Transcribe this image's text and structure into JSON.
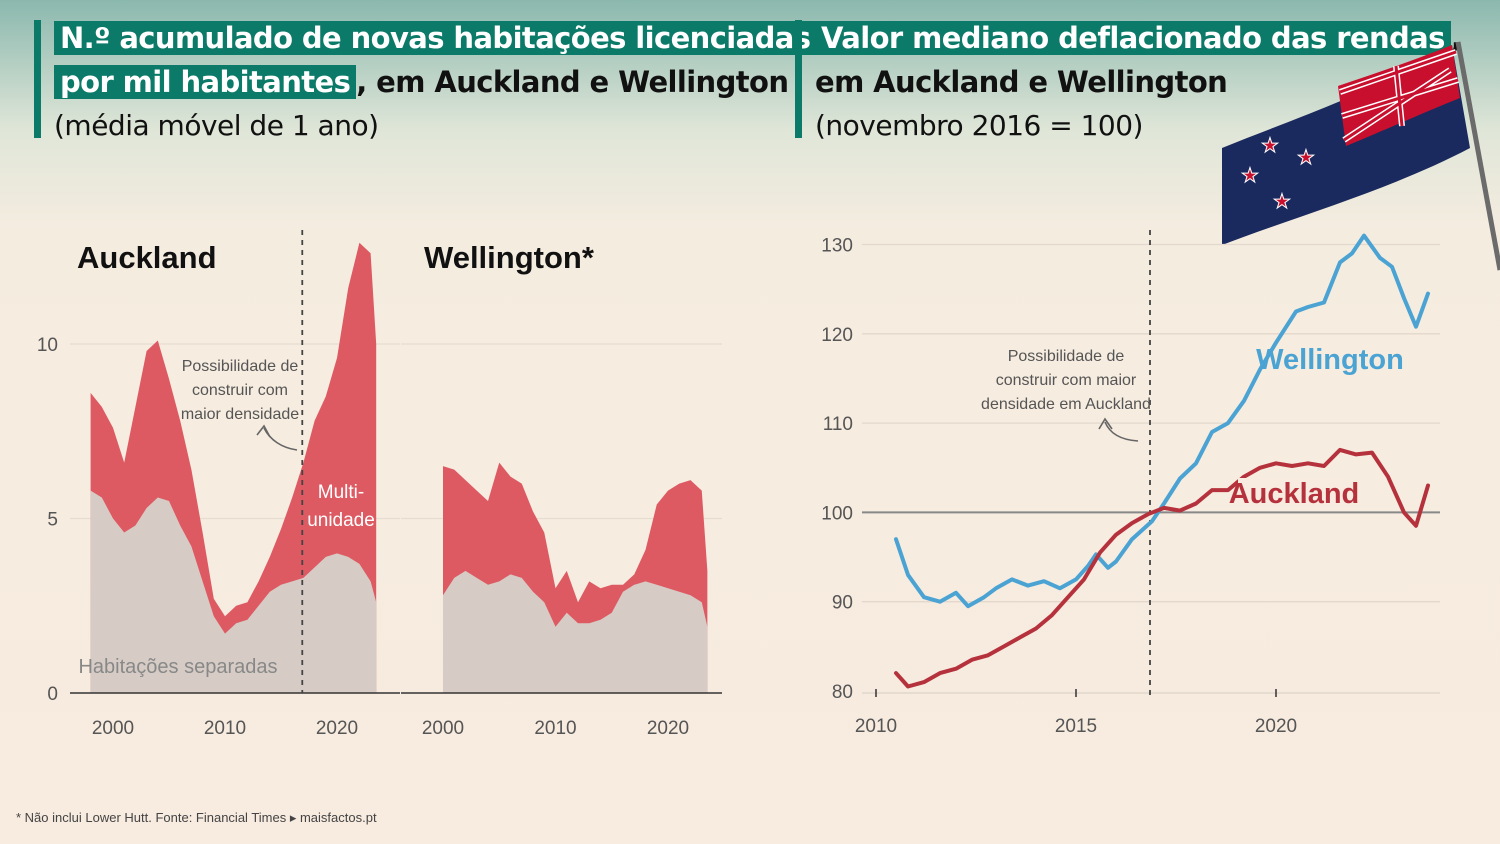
{
  "left": {
    "title_hl_1": "N.º acumulado de novas habitações licenciadas",
    "title_hl_2": "por mil habitantes",
    "title_rest_2": ", em Auckland e Wellington",
    "subtitle": "(média móvel de 1 ano)"
  },
  "right": {
    "title_hl_1": "Valor mediano deflacionado das rendas",
    "title_rest_1": ",",
    "title_2": "em Auckland e Wellington",
    "subtitle": "(novembro 2016 = 100)"
  },
  "footnote": "* Não inclui Lower Hutt.  Fonte: Financial Times ▸ maisfactos.pt",
  "colors": {
    "accent": "#0c7a68",
    "multi": "#de5a63",
    "detached": "#d6ccc5",
    "wellington": "#4ba3d3",
    "auckland": "#b5323d"
  },
  "chart_data": [
    {
      "type": "area",
      "panels": [
        "Auckland",
        "Wellington*"
      ],
      "annotation": "Possibilidade de construir com maior densidade",
      "label_multi": "Multi-\nunidade",
      "label_detached": "Habitações separadas",
      "ylim": [
        0,
        13.5
      ],
      "yticks": [
        0,
        5,
        10
      ],
      "xticks": [
        2000,
        2010,
        2020
      ],
      "auckland": {
        "x": [
          1998,
          1999,
          2000,
          2001,
          2002,
          2003,
          2004,
          2005,
          2006,
          2007,
          2008,
          2009,
          2010,
          2011,
          2012,
          2013,
          2014,
          2015,
          2016,
          2017,
          2018,
          2019,
          2020,
          2021,
          2022,
          2023,
          2023.5
        ],
        "detached": [
          5.8,
          5.6,
          5.0,
          4.6,
          4.8,
          5.3,
          5.6,
          5.5,
          4.8,
          4.2,
          3.2,
          2.2,
          1.7,
          2.0,
          2.1,
          2.5,
          2.9,
          3.1,
          3.2,
          3.3,
          3.6,
          3.9,
          4.0,
          3.9,
          3.7,
          3.2,
          2.6
        ],
        "total": [
          8.6,
          8.2,
          7.6,
          6.6,
          8.2,
          9.8,
          10.1,
          9.0,
          7.8,
          6.4,
          4.6,
          2.7,
          2.2,
          2.5,
          2.6,
          3.2,
          3.9,
          4.7,
          5.6,
          6.6,
          7.8,
          8.5,
          9.6,
          11.6,
          12.9,
          12.6,
          10.0
        ]
      },
      "wellington": {
        "x": [
          2000,
          2001,
          2002,
          2003,
          2004,
          2005,
          2006,
          2007,
          2008,
          2009,
          2010,
          2011,
          2012,
          2013,
          2014,
          2015,
          2016,
          2017,
          2018,
          2019,
          2020,
          2021,
          2022,
          2023,
          2023.5
        ],
        "detached": [
          2.8,
          3.3,
          3.5,
          3.3,
          3.1,
          3.2,
          3.4,
          3.3,
          2.9,
          2.6,
          1.9,
          2.3,
          2.0,
          2.0,
          2.1,
          2.3,
          2.9,
          3.1,
          3.2,
          3.1,
          3.0,
          2.9,
          2.8,
          2.6,
          1.9
        ],
        "total": [
          6.5,
          6.4,
          6.1,
          5.8,
          5.5,
          6.6,
          6.2,
          6.0,
          5.2,
          4.6,
          3.0,
          3.5,
          2.6,
          3.2,
          3.0,
          3.1,
          3.1,
          3.4,
          4.1,
          5.4,
          5.8,
          6.0,
          6.1,
          5.8,
          3.5
        ]
      }
    },
    {
      "type": "line",
      "annotation": "Possibilidade de construir com maior densidade em Auckland",
      "ylim": [
        80,
        131
      ],
      "yticks": [
        80,
        90,
        100,
        110,
        120,
        130
      ],
      "xticks": [
        2010,
        2015,
        2020
      ],
      "series": [
        {
          "name": "Wellington",
          "x": [
            2010.5,
            2010.8,
            2011.2,
            2011.6,
            2012.0,
            2012.3,
            2012.7,
            2013.0,
            2013.4,
            2013.8,
            2014.2,
            2014.6,
            2015.0,
            2015.3,
            2015.5,
            2015.8,
            2016.0,
            2016.4,
            2016.9,
            2017.2,
            2017.6,
            2018.0,
            2018.4,
            2018.8,
            2019.2,
            2019.6,
            2020.0,
            2020.5,
            2020.8,
            2021.2,
            2021.6,
            2021.9,
            2022.2,
            2022.6,
            2022.9,
            2023.2,
            2023.5,
            2023.8
          ],
          "values": [
            97,
            93,
            90.5,
            90,
            91,
            89.5,
            90.5,
            91.5,
            92.5,
            91.8,
            92.3,
            91.5,
            92.5,
            94,
            95.3,
            93.8,
            94.5,
            97,
            99,
            101,
            103.8,
            105.5,
            109,
            110,
            112.5,
            116,
            119,
            122.5,
            123,
            123.5,
            128,
            129,
            131,
            128.5,
            127.5,
            124,
            120.8,
            124.5
          ]
        },
        {
          "name": "Auckland",
          "x": [
            2010.5,
            2010.8,
            2011.2,
            2011.6,
            2012.0,
            2012.4,
            2012.8,
            2013.2,
            2013.6,
            2014.0,
            2014.4,
            2014.8,
            2015.2,
            2015.6,
            2016.0,
            2016.4,
            2016.8,
            2017.2,
            2017.6,
            2018.0,
            2018.4,
            2018.8,
            2019.2,
            2019.6,
            2020.0,
            2020.4,
            2020.8,
            2021.2,
            2021.6,
            2022.0,
            2022.4,
            2022.8,
            2023.2,
            2023.5,
            2023.8
          ],
          "values": [
            82,
            80.5,
            81,
            82,
            82.5,
            83.5,
            84,
            85,
            86,
            87,
            88.5,
            90.5,
            92.5,
            95.5,
            97.5,
            98.8,
            99.8,
            100.5,
            100.2,
            101,
            102.5,
            102.5,
            104,
            105,
            105.5,
            105.2,
            105.5,
            105.2,
            107,
            106.5,
            106.7,
            104,
            100,
            98.5,
            103
          ]
        }
      ]
    }
  ]
}
